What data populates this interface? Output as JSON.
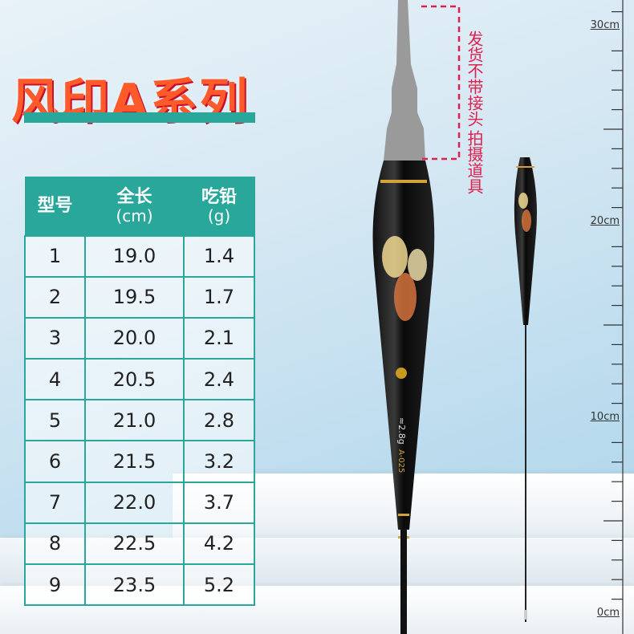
{
  "title": "风印A系列",
  "note": {
    "line1": "发货不带接头",
    "line2": "拍摄道具"
  },
  "table": {
    "headers": [
      {
        "label": "型号",
        "unit": ""
      },
      {
        "label": "全长",
        "unit": "(cm)"
      },
      {
        "label": "吃铅",
        "unit": "(g)"
      }
    ],
    "rows": [
      [
        "1",
        "19.0",
        "1.4"
      ],
      [
        "2",
        "19.5",
        "1.7"
      ],
      [
        "3",
        "20.0",
        "2.1"
      ],
      [
        "4",
        "20.5",
        "2.4"
      ],
      [
        "5",
        "21.0",
        "2.8"
      ],
      [
        "6",
        "21.5",
        "3.2"
      ],
      [
        "7",
        "22.0",
        "3.7"
      ],
      [
        "8",
        "22.5",
        "4.2"
      ],
      [
        "9",
        "23.5",
        "5.2"
      ]
    ]
  },
  "ruler": {
    "labels": [
      {
        "num": "30",
        "unit": "cm"
      },
      {
        "num": "20",
        "unit": "cm"
      },
      {
        "num": "10",
        "unit": "cm"
      },
      {
        "num": "0",
        "unit": "cm"
      }
    ]
  },
  "float_marking": {
    "weight": "≈2.8g",
    "model": "A-025"
  },
  "colors": {
    "teal": "#2aa79b",
    "title": "#ff5a2a",
    "note": "#e0204d"
  }
}
